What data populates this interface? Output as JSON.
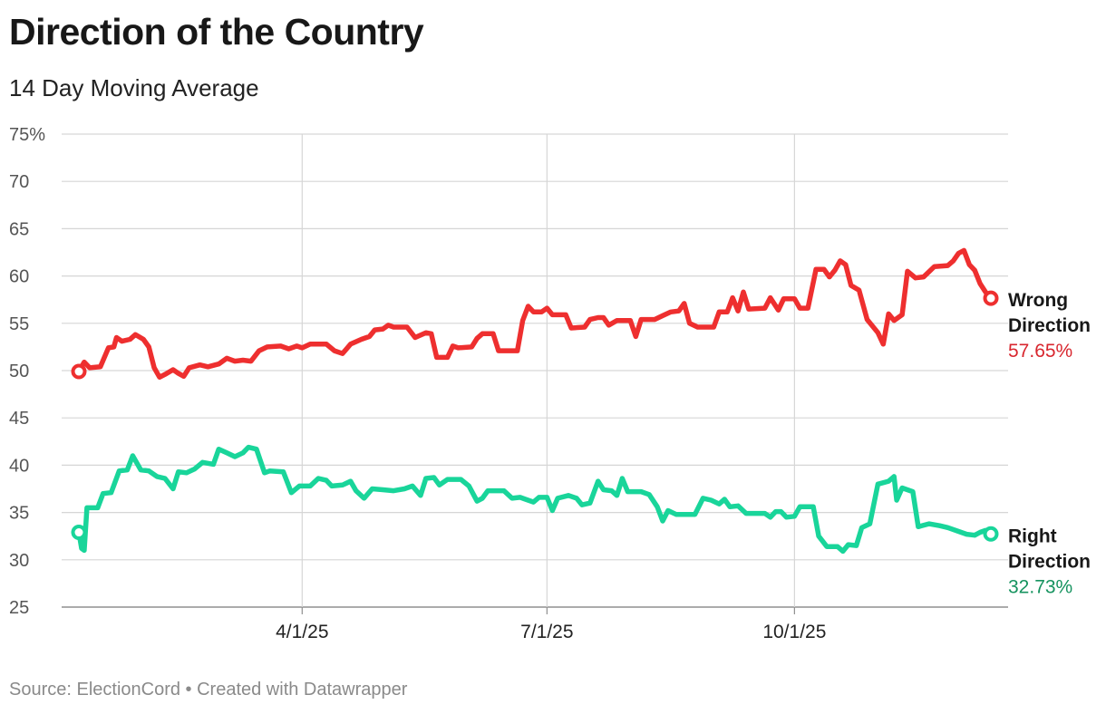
{
  "header": {
    "title": "Direction of the Country",
    "subtitle": "14 Day Moving Average"
  },
  "footer": {
    "source": "Source: ElectionCord",
    "separator": "•",
    "credit": "Created with Datawrapper",
    "text": "Source: ElectionCord • Created with Datawrapper"
  },
  "colors": {
    "wrong": "#ee2f2f",
    "right": "#19d59a",
    "wrong_label": "#d8262e",
    "right_label": "#16935f",
    "grid": "#d6d6d6",
    "axis": "#8f8f8f"
  },
  "chart_data": {
    "type": "line",
    "title": "Direction of the Country",
    "subtitle": "14 Day Moving Average",
    "xlabel": "",
    "ylabel": "",
    "x_domain": [
      "2025-01-08",
      "2025-12-09"
    ],
    "x_ticks": [
      {
        "date": "2025-04-01",
        "label": "4/1/25"
      },
      {
        "date": "2025-07-01",
        "label": "7/1/25"
      },
      {
        "date": "2025-10-01",
        "label": "10/1/25"
      }
    ],
    "ylim": [
      25,
      75
    ],
    "y_ticks": [
      {
        "value": 75,
        "label": "75%"
      },
      {
        "value": 70,
        "label": "70"
      },
      {
        "value": 65,
        "label": "65"
      },
      {
        "value": 60,
        "label": "60"
      },
      {
        "value": 55,
        "label": "55"
      },
      {
        "value": 50,
        "label": "50"
      },
      {
        "value": 45,
        "label": "45"
      },
      {
        "value": 40,
        "label": "40"
      },
      {
        "value": 35,
        "label": "35"
      },
      {
        "value": 30,
        "label": "30"
      },
      {
        "value": 25,
        "label": "25"
      }
    ],
    "grid": true,
    "series": [
      {
        "name": "Wrong Direction",
        "label_lines": [
          "Wrong",
          "Direction"
        ],
        "end_label": "57.65%",
        "color": "#ee2f2f",
        "points": [
          [
            "2025-01-08",
            49.9
          ],
          [
            "2025-01-10",
            50.9
          ],
          [
            "2025-01-12",
            50.3
          ],
          [
            "2025-01-16",
            50.4
          ],
          [
            "2025-01-19",
            52.4
          ],
          [
            "2025-01-21",
            52.5
          ],
          [
            "2025-01-22",
            53.5
          ],
          [
            "2025-01-24",
            53.1
          ],
          [
            "2025-01-27",
            53.3
          ],
          [
            "2025-01-29",
            53.8
          ],
          [
            "2025-02-01",
            53.3
          ],
          [
            "2025-02-03",
            52.5
          ],
          [
            "2025-02-05",
            50.3
          ],
          [
            "2025-02-07",
            49.3
          ],
          [
            "2025-02-09",
            49.6
          ],
          [
            "2025-02-12",
            50.1
          ],
          [
            "2025-02-14",
            49.7
          ],
          [
            "2025-02-16",
            49.4
          ],
          [
            "2025-02-18",
            50.3
          ],
          [
            "2025-02-22",
            50.6
          ],
          [
            "2025-02-25",
            50.4
          ],
          [
            "2025-03-01",
            50.7
          ],
          [
            "2025-03-04",
            51.3
          ],
          [
            "2025-03-07",
            51.0
          ],
          [
            "2025-03-10",
            51.1
          ],
          [
            "2025-03-13",
            51.0
          ],
          [
            "2025-03-16",
            52.1
          ],
          [
            "2025-03-19",
            52.5
          ],
          [
            "2025-03-24",
            52.6
          ],
          [
            "2025-03-27",
            52.3
          ],
          [
            "2025-03-30",
            52.6
          ],
          [
            "2025-04-01",
            52.4
          ],
          [
            "2025-04-04",
            52.8
          ],
          [
            "2025-04-10",
            52.8
          ],
          [
            "2025-04-13",
            52.1
          ],
          [
            "2025-04-16",
            51.8
          ],
          [
            "2025-04-19",
            52.8
          ],
          [
            "2025-04-23",
            53.3
          ],
          [
            "2025-04-26",
            53.6
          ],
          [
            "2025-04-28",
            54.3
          ],
          [
            "2025-05-01",
            54.4
          ],
          [
            "2025-05-03",
            54.8
          ],
          [
            "2025-05-05",
            54.6
          ],
          [
            "2025-05-10",
            54.6
          ],
          [
            "2025-05-13",
            53.5
          ],
          [
            "2025-05-17",
            54.0
          ],
          [
            "2025-05-19",
            53.9
          ],
          [
            "2025-05-21",
            51.4
          ],
          [
            "2025-05-25",
            51.4
          ],
          [
            "2025-05-27",
            52.6
          ],
          [
            "2025-05-29",
            52.4
          ],
          [
            "2025-06-03",
            52.5
          ],
          [
            "2025-06-05",
            53.4
          ],
          [
            "2025-06-07",
            53.9
          ],
          [
            "2025-06-11",
            53.9
          ],
          [
            "2025-06-13",
            52.1
          ],
          [
            "2025-06-20",
            52.1
          ],
          [
            "2025-06-22",
            55.3
          ],
          [
            "2025-06-24",
            56.8
          ],
          [
            "2025-06-26",
            56.2
          ],
          [
            "2025-06-29",
            56.2
          ],
          [
            "2025-07-01",
            56.6
          ],
          [
            "2025-07-03",
            55.9
          ],
          [
            "2025-07-08",
            55.9
          ],
          [
            "2025-07-10",
            54.5
          ],
          [
            "2025-07-15",
            54.6
          ],
          [
            "2025-07-17",
            55.4
          ],
          [
            "2025-07-20",
            55.6
          ],
          [
            "2025-07-22",
            55.6
          ],
          [
            "2025-07-24",
            54.8
          ],
          [
            "2025-07-27",
            55.3
          ],
          [
            "2025-08-01",
            55.3
          ],
          [
            "2025-08-03",
            53.6
          ],
          [
            "2025-08-05",
            55.4
          ],
          [
            "2025-08-10",
            55.4
          ],
          [
            "2025-08-13",
            55.8
          ],
          [
            "2025-08-16",
            56.2
          ],
          [
            "2025-08-19",
            56.3
          ],
          [
            "2025-08-21",
            57.1
          ],
          [
            "2025-08-23",
            55.0
          ],
          [
            "2025-08-26",
            54.6
          ],
          [
            "2025-09-01",
            54.6
          ],
          [
            "2025-09-03",
            56.2
          ],
          [
            "2025-09-06",
            56.2
          ],
          [
            "2025-09-08",
            57.7
          ],
          [
            "2025-09-10",
            56.3
          ],
          [
            "2025-09-12",
            58.3
          ],
          [
            "2025-09-14",
            56.5
          ],
          [
            "2025-09-20",
            56.6
          ],
          [
            "2025-09-22",
            57.7
          ],
          [
            "2025-09-25",
            56.4
          ],
          [
            "2025-09-27",
            57.6
          ],
          [
            "2025-10-01",
            57.6
          ],
          [
            "2025-10-03",
            56.6
          ],
          [
            "2025-10-06",
            56.6
          ],
          [
            "2025-10-09",
            60.7
          ],
          [
            "2025-10-12",
            60.7
          ],
          [
            "2025-10-14",
            59.9
          ],
          [
            "2025-10-16",
            60.6
          ],
          [
            "2025-10-18",
            61.6
          ],
          [
            "2025-10-20",
            61.2
          ],
          [
            "2025-10-22",
            59.0
          ],
          [
            "2025-10-25",
            58.5
          ],
          [
            "2025-10-28",
            55.4
          ],
          [
            "2025-11-01",
            54.0
          ],
          [
            "2025-11-03",
            52.8
          ],
          [
            "2025-11-05",
            56.0
          ],
          [
            "2025-11-07",
            55.3
          ],
          [
            "2025-11-10",
            55.9
          ],
          [
            "2025-11-12",
            60.5
          ],
          [
            "2025-11-15",
            59.8
          ],
          [
            "2025-11-18",
            59.9
          ],
          [
            "2025-11-22",
            61.0
          ],
          [
            "2025-11-27",
            61.1
          ],
          [
            "2025-11-29",
            61.6
          ],
          [
            "2025-12-01",
            62.4
          ],
          [
            "2025-12-03",
            62.7
          ],
          [
            "2025-12-05",
            61.2
          ],
          [
            "2025-12-07",
            60.6
          ],
          [
            "2025-12-09",
            59.2
          ],
          [
            "2025-12-11",
            58.3
          ],
          [
            "2025-12-13",
            57.65
          ]
        ]
      },
      {
        "name": "Right Direction",
        "label_lines": [
          "Right",
          "Direction"
        ],
        "end_label": "32.73%",
        "color": "#19d59a",
        "points": [
          [
            "2025-01-08",
            32.9
          ],
          [
            "2025-01-09",
            31.2
          ],
          [
            "2025-01-10",
            31.0
          ],
          [
            "2025-01-11",
            35.5
          ],
          [
            "2025-01-15",
            35.5
          ],
          [
            "2025-01-17",
            37.0
          ],
          [
            "2025-01-20",
            37.1
          ],
          [
            "2025-01-23",
            39.4
          ],
          [
            "2025-01-26",
            39.5
          ],
          [
            "2025-01-28",
            41.0
          ],
          [
            "2025-01-31",
            39.5
          ],
          [
            "2025-02-03",
            39.4
          ],
          [
            "2025-02-06",
            38.8
          ],
          [
            "2025-02-09",
            38.6
          ],
          [
            "2025-02-12",
            37.5
          ],
          [
            "2025-02-14",
            39.3
          ],
          [
            "2025-02-17",
            39.2
          ],
          [
            "2025-02-20",
            39.6
          ],
          [
            "2025-02-23",
            40.3
          ],
          [
            "2025-02-27",
            40.1
          ],
          [
            "2025-03-01",
            41.7
          ],
          [
            "2025-03-04",
            41.3
          ],
          [
            "2025-03-07",
            40.9
          ],
          [
            "2025-03-10",
            41.3
          ],
          [
            "2025-03-12",
            41.9
          ],
          [
            "2025-03-15",
            41.7
          ],
          [
            "2025-03-18",
            39.2
          ],
          [
            "2025-03-20",
            39.4
          ],
          [
            "2025-03-25",
            39.3
          ],
          [
            "2025-03-28",
            37.1
          ],
          [
            "2025-03-31",
            37.8
          ],
          [
            "2025-04-04",
            37.8
          ],
          [
            "2025-04-07",
            38.6
          ],
          [
            "2025-04-10",
            38.4
          ],
          [
            "2025-04-12",
            37.8
          ],
          [
            "2025-04-16",
            37.9
          ],
          [
            "2025-04-19",
            38.3
          ],
          [
            "2025-04-21",
            37.3
          ],
          [
            "2025-04-24",
            36.5
          ],
          [
            "2025-04-27",
            37.5
          ],
          [
            "2025-05-01",
            37.4
          ],
          [
            "2025-05-05",
            37.3
          ],
          [
            "2025-05-09",
            37.5
          ],
          [
            "2025-05-12",
            37.8
          ],
          [
            "2025-05-15",
            36.8
          ],
          [
            "2025-05-17",
            38.6
          ],
          [
            "2025-05-20",
            38.7
          ],
          [
            "2025-05-22",
            37.9
          ],
          [
            "2025-05-25",
            38.5
          ],
          [
            "2025-05-30",
            38.5
          ],
          [
            "2025-06-02",
            37.8
          ],
          [
            "2025-06-05",
            36.2
          ],
          [
            "2025-06-07",
            36.5
          ],
          [
            "2025-06-09",
            37.3
          ],
          [
            "2025-06-15",
            37.3
          ],
          [
            "2025-06-18",
            36.5
          ],
          [
            "2025-06-21",
            36.6
          ],
          [
            "2025-06-23",
            36.4
          ],
          [
            "2025-06-26",
            36.1
          ],
          [
            "2025-06-28",
            36.6
          ],
          [
            "2025-07-01",
            36.6
          ],
          [
            "2025-07-03",
            35.2
          ],
          [
            "2025-07-05",
            36.5
          ],
          [
            "2025-07-09",
            36.8
          ],
          [
            "2025-07-12",
            36.5
          ],
          [
            "2025-07-14",
            35.8
          ],
          [
            "2025-07-17",
            36.0
          ],
          [
            "2025-07-20",
            38.3
          ],
          [
            "2025-07-22",
            37.4
          ],
          [
            "2025-07-25",
            37.3
          ],
          [
            "2025-07-27",
            36.8
          ],
          [
            "2025-07-29",
            38.6
          ],
          [
            "2025-07-31",
            37.2
          ],
          [
            "2025-08-05",
            37.2
          ],
          [
            "2025-08-08",
            36.9
          ],
          [
            "2025-08-11",
            35.6
          ],
          [
            "2025-08-13",
            34.1
          ],
          [
            "2025-08-15",
            35.2
          ],
          [
            "2025-08-18",
            34.8
          ],
          [
            "2025-08-25",
            34.8
          ],
          [
            "2025-08-28",
            36.5
          ],
          [
            "2025-08-31",
            36.3
          ],
          [
            "2025-09-03",
            35.9
          ],
          [
            "2025-09-05",
            36.4
          ],
          [
            "2025-09-07",
            35.6
          ],
          [
            "2025-09-10",
            35.7
          ],
          [
            "2025-09-13",
            34.9
          ],
          [
            "2025-09-20",
            34.9
          ],
          [
            "2025-09-22",
            34.5
          ],
          [
            "2025-09-24",
            35.1
          ],
          [
            "2025-09-26",
            35.1
          ],
          [
            "2025-09-28",
            34.5
          ],
          [
            "2025-10-01",
            34.6
          ],
          [
            "2025-10-03",
            35.6
          ],
          [
            "2025-10-08",
            35.6
          ],
          [
            "2025-10-10",
            32.5
          ],
          [
            "2025-10-13",
            31.4
          ],
          [
            "2025-10-17",
            31.4
          ],
          [
            "2025-10-19",
            30.9
          ],
          [
            "2025-10-21",
            31.6
          ],
          [
            "2025-10-24",
            31.5
          ],
          [
            "2025-10-26",
            33.4
          ],
          [
            "2025-10-29",
            33.8
          ],
          [
            "2025-11-01",
            38.0
          ],
          [
            "2025-11-05",
            38.3
          ],
          [
            "2025-11-07",
            38.8
          ],
          [
            "2025-11-08",
            36.3
          ],
          [
            "2025-11-10",
            37.6
          ],
          [
            "2025-11-14",
            37.2
          ],
          [
            "2025-11-16",
            33.5
          ],
          [
            "2025-11-20",
            33.8
          ],
          [
            "2025-11-24",
            33.6
          ],
          [
            "2025-11-27",
            33.4
          ],
          [
            "2025-12-01",
            33.0
          ],
          [
            "2025-12-04",
            32.7
          ],
          [
            "2025-12-07",
            32.6
          ],
          [
            "2025-12-09",
            32.9
          ],
          [
            "2025-12-11",
            33.1
          ],
          [
            "2025-12-13",
            32.73
          ]
        ]
      }
    ]
  }
}
